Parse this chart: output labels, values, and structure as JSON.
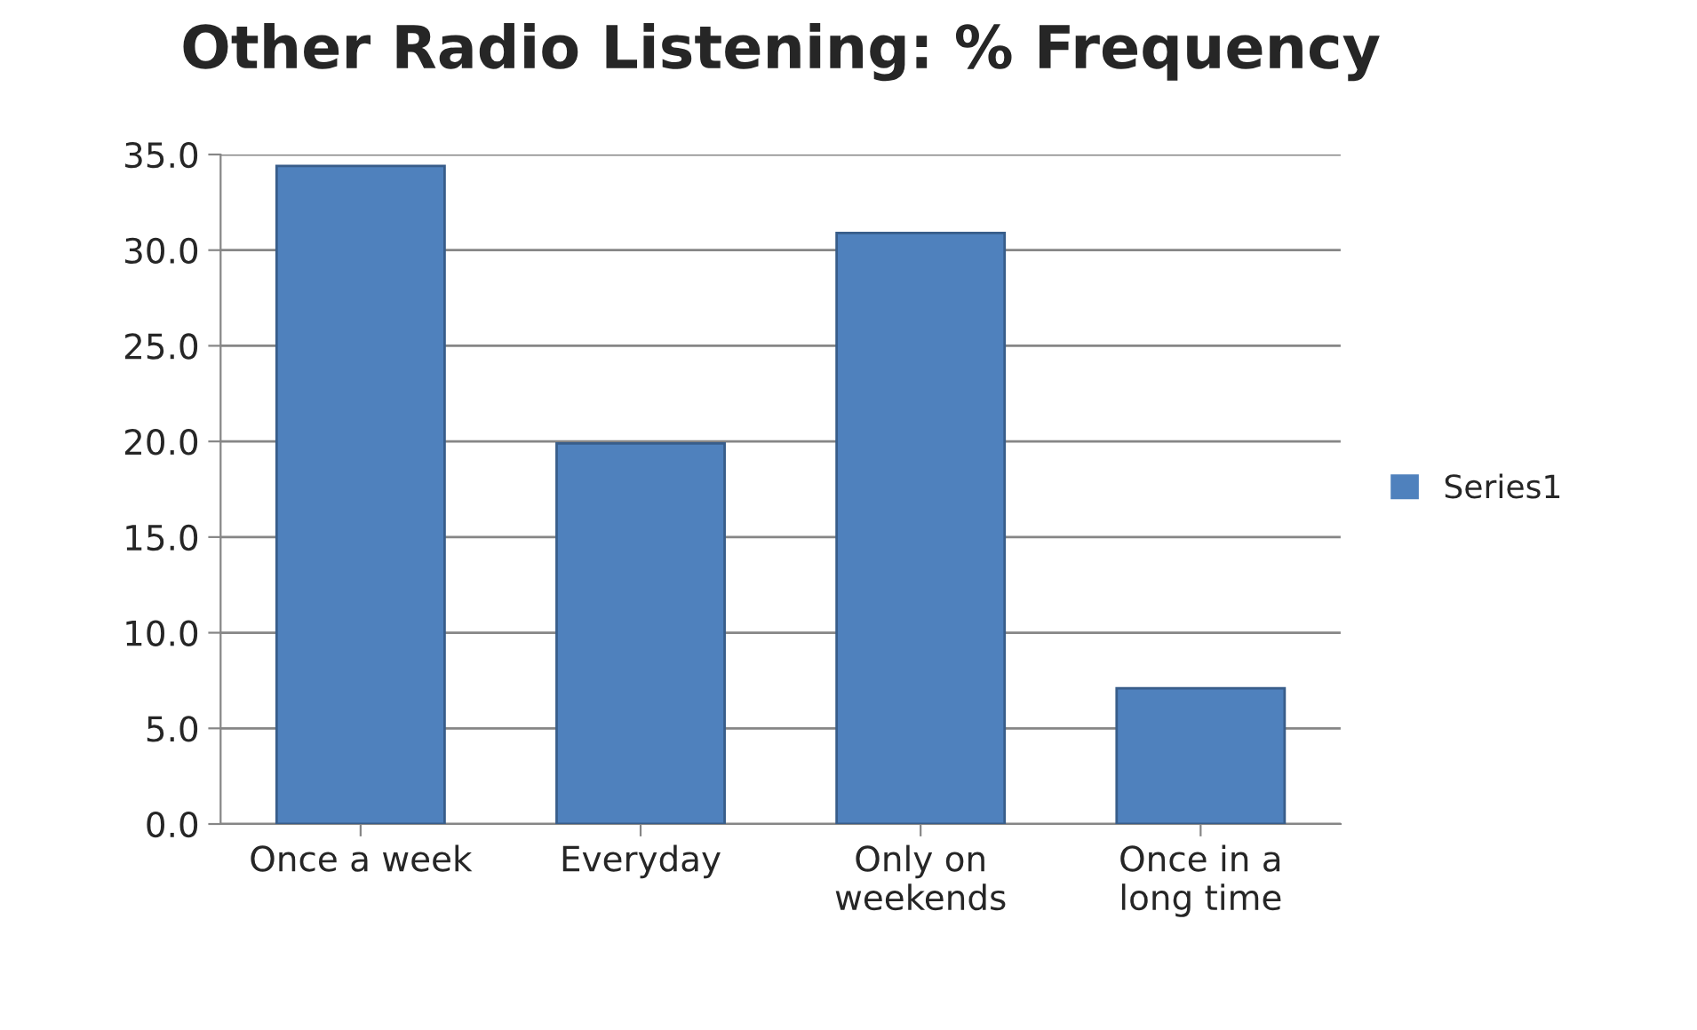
{
  "chart_data": {
    "type": "bar",
    "title": "Other Radio Listening: % Frequency",
    "categories": [
      "Once a week",
      "Everyday",
      "Only on\nweekends",
      "Once in a\nlong time"
    ],
    "series": [
      {
        "name": "Series1",
        "color": "#4f81bd",
        "values": [
          34.4,
          19.9,
          30.9,
          7.1
        ]
      }
    ],
    "ylim": [
      0,
      35
    ],
    "yticks": [
      {
        "value": 0,
        "label": "0.0"
      },
      {
        "value": 5,
        "label": "5.0"
      },
      {
        "value": 10,
        "label": "10.0"
      },
      {
        "value": 15,
        "label": "15.0"
      },
      {
        "value": 20,
        "label": "20.0"
      },
      {
        "value": 25,
        "label": "25.0"
      },
      {
        "value": 30,
        "label": "30.0"
      },
      {
        "value": 35,
        "label": "35.0"
      }
    ],
    "grid": "y",
    "legend": "right"
  }
}
